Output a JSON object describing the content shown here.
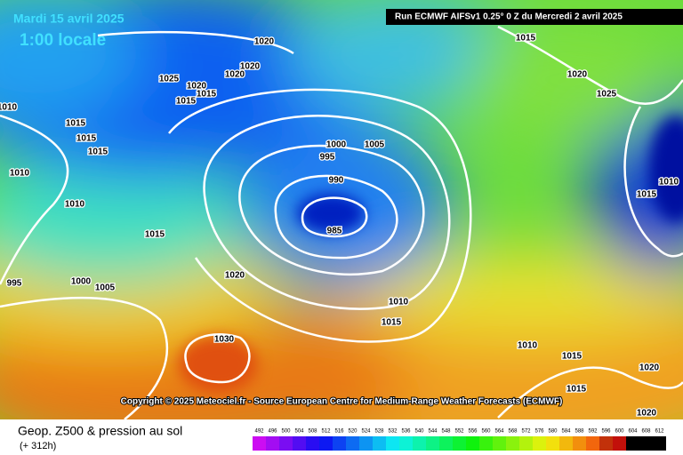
{
  "header": {
    "date": "Mardi 15 avril 2025",
    "time": "1:00 locale",
    "run": "Run ECMWF AIFSv1 0.25° 0 Z du Mercredi 2 avril 2025"
  },
  "copyright": "Copyright © 2025 Meteociel.fr - Source European Centre for Medium-Range Weather Forecasts (ECMWF)",
  "isobar_labels": [
    1020,
    1015,
    1020,
    1020,
    1025,
    1020,
    1015,
    1015,
    1010,
    1015,
    1015,
    1015,
    1020,
    1025,
    1000,
    1005,
    995,
    1010,
    990,
    1010,
    1015,
    1010,
    985,
    1015,
    1020,
    995,
    1000,
    1005,
    1010,
    1015,
    1030,
    1010,
    1015,
    1020,
    1015,
    1020
  ],
  "footer": {
    "title": "Geop. Z500 & pression au sol",
    "lead": "(+ 312h)"
  },
  "legend": {
    "labels": [
      492,
      496,
      500,
      504,
      508,
      512,
      516,
      520,
      524,
      528,
      532,
      536,
      540,
      544,
      548,
      552,
      556,
      560,
      564,
      568,
      572,
      576,
      580,
      584,
      588,
      592,
      596,
      600,
      604,
      608,
      612
    ]
  }
}
